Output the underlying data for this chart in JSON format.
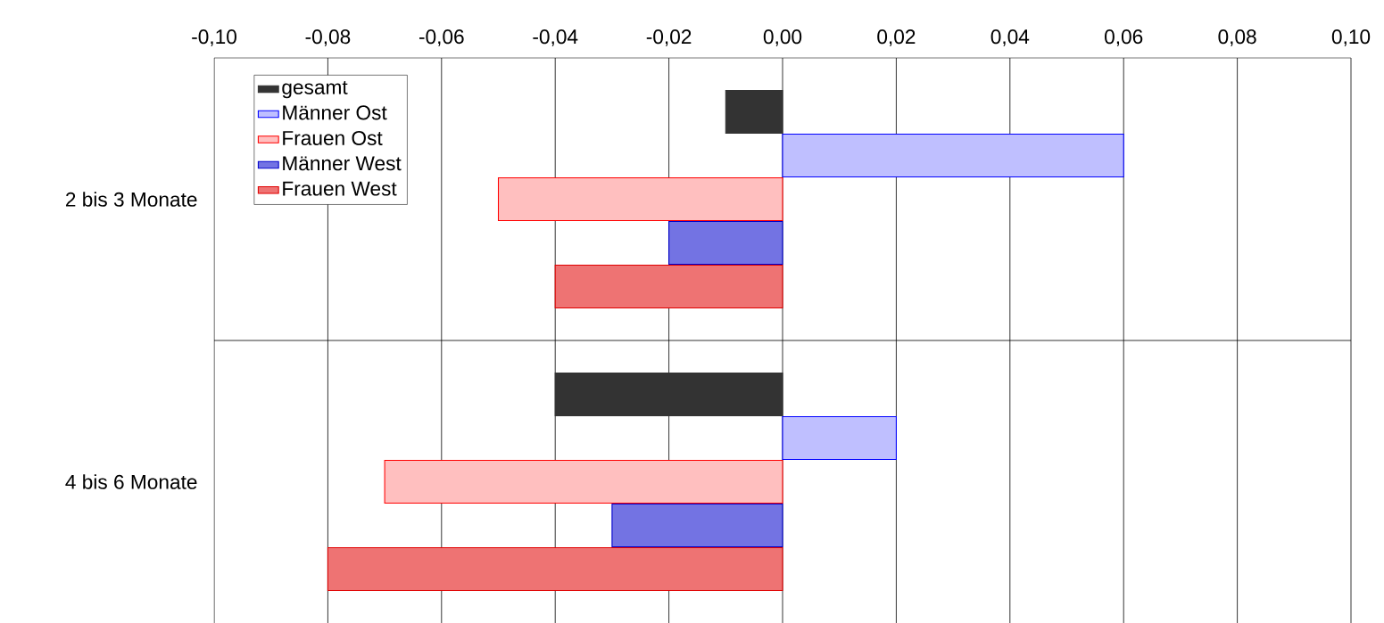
{
  "chart_data": {
    "type": "bar",
    "orientation": "horizontal",
    "categories": [
      "2 bis 3 Monate",
      "4 bis 6 Monate"
    ],
    "series": [
      {
        "name": "gesamt",
        "color": "#333333",
        "values": [
          -0.01,
          -0.04
        ]
      },
      {
        "name": "Männer Ost",
        "color": "#0000ff",
        "values": [
          0.06,
          0.02
        ]
      },
      {
        "name": "Frauen Ost",
        "color": "#ff0000",
        "values": [
          -0.05,
          -0.07
        ]
      },
      {
        "name": "Männer West",
        "color": "#0000cc",
        "values": [
          -0.02,
          -0.03
        ]
      },
      {
        "name": "Frauen West",
        "color": "#e00000",
        "values": [
          -0.04,
          -0.08
        ]
      }
    ],
    "xlim": [
      -0.1,
      0.1
    ],
    "xticks": [
      {
        "value": -0.1,
        "label": "-0,10"
      },
      {
        "value": -0.08,
        "label": "-0,08"
      },
      {
        "value": -0.06,
        "label": "-0,06"
      },
      {
        "value": -0.04,
        "label": "-0,04"
      },
      {
        "value": -0.02,
        "label": "-0,02"
      },
      {
        "value": 0,
        "label": "0,00"
      },
      {
        "value": 0.02,
        "label": "0,02"
      },
      {
        "value": 0.04,
        "label": "0,04"
      },
      {
        "value": 0.06,
        "label": "0,06"
      },
      {
        "value": 0.08,
        "label": "0,08"
      },
      {
        "value": 0.1,
        "label": "0,10"
      }
    ],
    "grid": "x",
    "legend": "top left"
  }
}
